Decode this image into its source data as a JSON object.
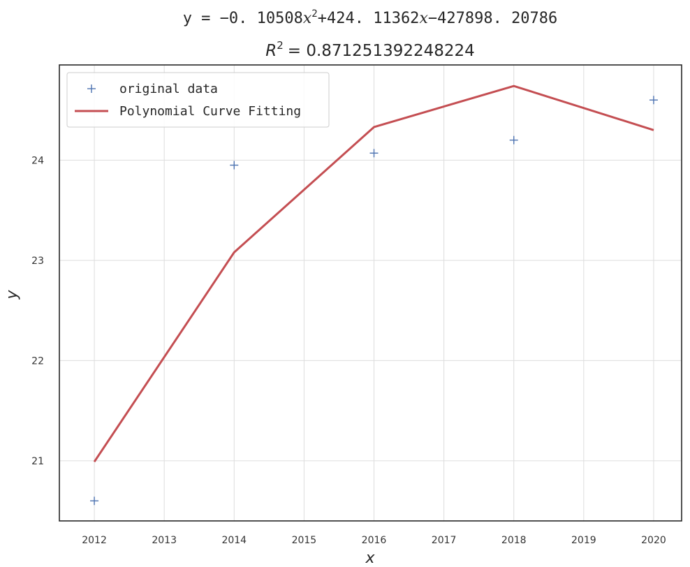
{
  "chart_data": {
    "type": "line",
    "title": {
      "equation": {
        "prefix": "y = −0. 10508",
        "var1": "x",
        "exp": "2",
        "mid": "+424. 11362",
        "var2": "x",
        "suffix": "−427898. 20786"
      },
      "r2": {
        "symbol": "R",
        "exp": "2",
        "value": "= 0.871251392248224"
      }
    },
    "xlabel": "x",
    "ylabel": "y",
    "xlim": [
      2011.5,
      2020.4
    ],
    "ylim": [
      20.4,
      24.95
    ],
    "xticks": [
      2012,
      2013,
      2014,
      2015,
      2016,
      2017,
      2018,
      2019,
      2020
    ],
    "yticks": [
      21,
      22,
      23,
      24
    ],
    "grid": true,
    "legend_position": "top-left",
    "series": [
      {
        "name": "original data",
        "kind": "scatter",
        "marker": "+",
        "color": "#4c72b0",
        "x": [
          2012,
          2014,
          2016,
          2018,
          2020
        ],
        "y": [
          20.6,
          23.95,
          24.07,
          24.2,
          24.6
        ]
      },
      {
        "name": "Polynomial Curve Fitting",
        "kind": "line",
        "color": "#c44e52",
        "x": [
          2012,
          2014,
          2016,
          2018,
          2020
        ],
        "y": [
          20.99,
          23.08,
          24.33,
          24.74,
          24.3
        ]
      }
    ]
  }
}
